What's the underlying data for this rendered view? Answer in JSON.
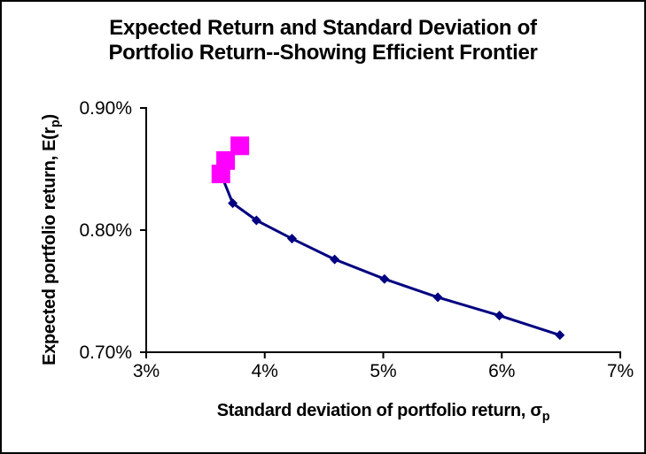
{
  "chart_data": {
    "type": "line",
    "title_lines": [
      "Expected Return and Standard Deviation of",
      "Portfolio Return--Showing Efficient Frontier"
    ],
    "x_axis": {
      "label_text": "Standard deviation of portfolio return, ",
      "label_symbol": "σ",
      "label_subscript": "p",
      "min": 3,
      "max": 7,
      "ticks": [
        {
          "value": 3,
          "label": "3%"
        },
        {
          "value": 4,
          "label": "4%"
        },
        {
          "value": 5,
          "label": "5%"
        },
        {
          "value": 6,
          "label": "6%"
        },
        {
          "value": 7,
          "label": "7%"
        }
      ]
    },
    "y_axis": {
      "label_text": "Expected portfolio return, E(r",
      "label_subscript": "p",
      "label_suffix": ")",
      "min": 0.7,
      "max": 0.9,
      "ticks": [
        {
          "value": 0.9,
          "label": "0.90%"
        },
        {
          "value": 0.8,
          "label": "0.80%"
        },
        {
          "value": 0.7,
          "label": "0.70%"
        }
      ]
    },
    "grid": "off",
    "legend": "none",
    "axis_color": "#000000",
    "background_color": "#FFFFFF",
    "series": [
      {
        "name": "efficient-frontier-portfolios",
        "marker": "square",
        "color": "#FF00FF",
        "marker_size": 21,
        "has_line": false,
        "points": [
          {
            "sd": 3.79,
            "er": 0.869
          },
          {
            "sd": 3.67,
            "er": 0.857
          },
          {
            "sd": 3.63,
            "er": 0.846
          }
        ]
      },
      {
        "name": "portfolio-opportunity-set",
        "marker": "diamond",
        "color": "#000080",
        "marker_size": 11,
        "has_line": true,
        "line_color": "#000080",
        "points": [
          {
            "sd": 3.73,
            "er": 0.822
          },
          {
            "sd": 3.93,
            "er": 0.808
          },
          {
            "sd": 4.23,
            "er": 0.793
          },
          {
            "sd": 4.59,
            "er": 0.776
          },
          {
            "sd": 5.01,
            "er": 0.76
          },
          {
            "sd": 5.46,
            "er": 0.745
          },
          {
            "sd": 5.98,
            "er": 0.73
          },
          {
            "sd": 6.49,
            "er": 0.714
          }
        ]
      }
    ]
  }
}
